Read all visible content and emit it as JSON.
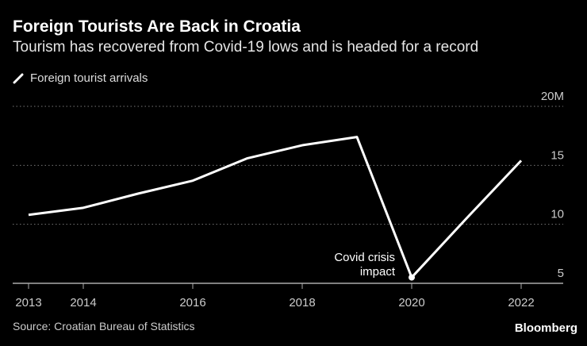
{
  "chart_data": {
    "type": "line",
    "title": "Foreign Tourists Are Back in Croatia",
    "subtitle": "Tourism has recovered from Covid-19 lows and is headed for a record",
    "series": [
      {
        "name": "Foreign tourist arrivals",
        "x": [
          2013,
          2014,
          2015,
          2016,
          2017,
          2018,
          2019,
          2020,
          2021,
          2022
        ],
        "values": [
          10.8,
          11.4,
          12.6,
          13.7,
          15.6,
          16.7,
          17.4,
          5.5,
          10.5,
          15.4
        ]
      }
    ],
    "xticks": [
      "2013",
      "2014",
      "2016",
      "2018",
      "2020",
      "2022"
    ],
    "yticks": [
      "5",
      "10",
      "15",
      "20M"
    ],
    "ylim": [
      5,
      20
    ],
    "xlim": [
      2013,
      2022
    ],
    "grid": true,
    "legend": "top-left",
    "annotation": {
      "text_line1": "Covid crisis",
      "text_line2": "impact",
      "x": 2020
    },
    "color": "#ffffff",
    "source": "Source: Croatian Bureau of Statistics",
    "brand": "Bloomberg"
  }
}
